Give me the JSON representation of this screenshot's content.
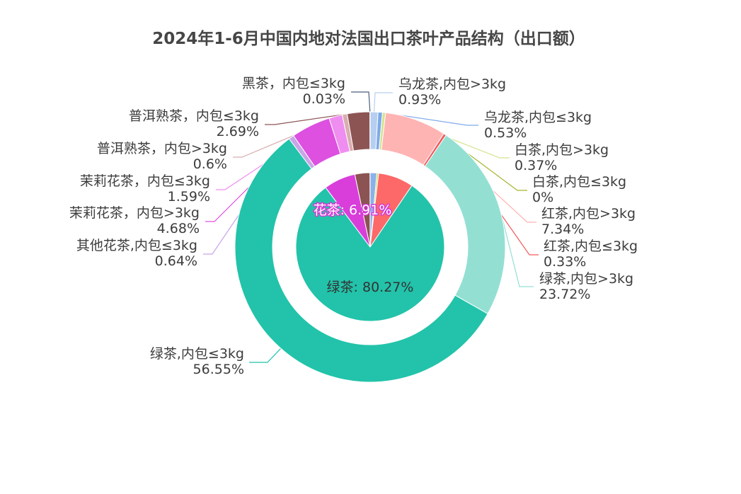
{
  "chart_data": {
    "type": "pie",
    "title": "2024年1-6月中国内地对法国出口茶叶产品结构（出口额）",
    "inner": [
      {
        "value": 1.46,
        "color": "#8ab2ea"
      },
      {
        "value": 0.37,
        "color": "#c8d74f"
      },
      {
        "value": 7.67,
        "color": "#fd6868"
      },
      {
        "value": 80.27,
        "label": "绿茶: 80.27%",
        "color": "#22c3aa"
      },
      {
        "value": 6.91,
        "label": "花茶: 6.91%",
        "color": "#d93edb"
      },
      {
        "value": 3.29,
        "color": "#8c5353"
      },
      {
        "value": 0.03,
        "color": "#4a5a78"
      }
    ],
    "outer": [
      {
        "name": "乌龙茶,内包>3kg",
        "pct": "0.93%",
        "value": 0.93,
        "color": "#b6cff0"
      },
      {
        "name": "乌龙茶,内包≤3kg",
        "pct": "0.53%",
        "value": 0.53,
        "color": "#7eaae8"
      },
      {
        "name": "白茶,内包>3kg",
        "pct": "0.37%",
        "value": 0.37,
        "color": "#d5e38e"
      },
      {
        "name": "白茶,内包≤3kg",
        "pct": "0%",
        "value": 0,
        "color": "#a6b52b"
      },
      {
        "name": "红茶,内包>3kg",
        "pct": "7.34%",
        "value": 7.34,
        "color": "#ffb4b4"
      },
      {
        "name": "红茶,内包≤3kg",
        "pct": "0.33%",
        "value": 0.33,
        "color": "#f35b5b"
      },
      {
        "name": "绿茶,内包>3kg",
        "pct": "23.72%",
        "value": 23.72,
        "color": "#93e0d3"
      },
      {
        "name": "绿茶,内包≤3kg",
        "pct": "56.55%",
        "value": 56.55,
        "color": "#22c3aa"
      },
      {
        "name": "其他花茶,内包≤3kg",
        "pct": "0.64%",
        "value": 0.64,
        "color": "#c7a5e7"
      },
      {
        "name": "茉莉花茶，内包>3kg",
        "pct": "4.68%",
        "value": 4.68,
        "color": "#dd50e0"
      },
      {
        "name": "茉莉花茶，内包≤3kg",
        "pct": "1.59%",
        "value": 1.59,
        "color": "#ef8ef0"
      },
      {
        "name": "普洱熟茶，内包>3kg",
        "pct": "0.6%",
        "value": 0.6,
        "color": "#d8aeb0"
      },
      {
        "name": "普洱熟茶，内包≤3kg",
        "pct": "2.69%",
        "value": 2.69,
        "color": "#8d5454"
      },
      {
        "name": "黑茶，内包≤3kg",
        "pct": "0.03%",
        "value": 0.03,
        "color": "#4c5d7d"
      }
    ]
  }
}
